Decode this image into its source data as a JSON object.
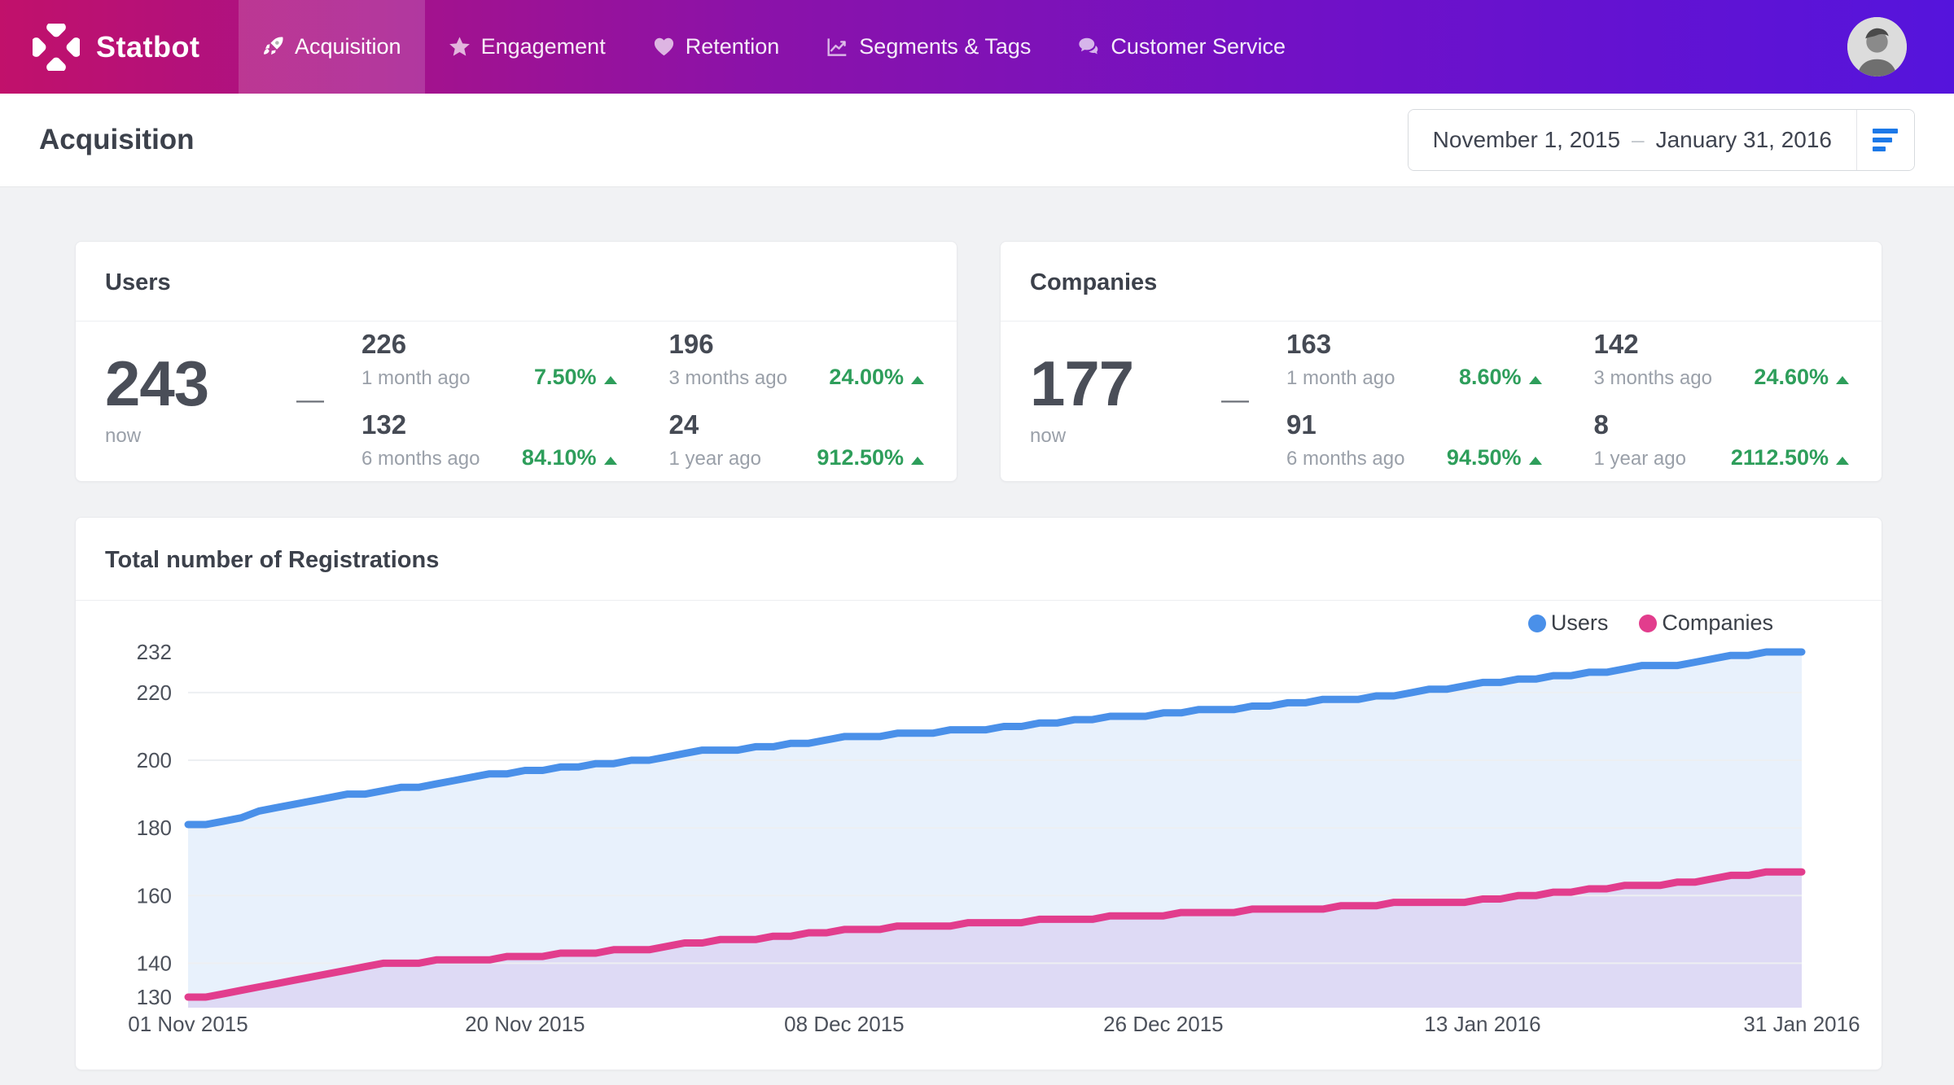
{
  "brand": {
    "name": "Statbot"
  },
  "nav": {
    "items": [
      {
        "label": "Acquisition",
        "icon": "rocket-icon",
        "active": true
      },
      {
        "label": "Engagement",
        "icon": "star-icon",
        "active": false
      },
      {
        "label": "Retention",
        "icon": "heart-icon",
        "active": false
      },
      {
        "label": "Segments & Tags",
        "icon": "chart-line-icon",
        "active": false
      },
      {
        "label": "Customer Service",
        "icon": "comments-icon",
        "active": false
      }
    ]
  },
  "header": {
    "title": "Acquisition"
  },
  "date_picker": {
    "start": "November 1, 2015",
    "separator": "–",
    "end": "January 31, 2016",
    "icon": "filter-icon"
  },
  "cards": [
    {
      "title": "Users",
      "current": {
        "value": "243",
        "label": "now"
      },
      "separator": "—",
      "stats": [
        {
          "value": "226",
          "label": "1 month ago",
          "change": "7.50%",
          "direction": "up"
        },
        {
          "value": "196",
          "label": "3 months ago",
          "change": "24.00%",
          "direction": "up"
        },
        {
          "value": "132",
          "label": "6 months ago",
          "change": "84.10%",
          "direction": "up"
        },
        {
          "value": "24",
          "label": "1 year ago",
          "change": "912.50%",
          "direction": "up"
        }
      ]
    },
    {
      "title": "Companies",
      "current": {
        "value": "177",
        "label": "now"
      },
      "separator": "—",
      "stats": [
        {
          "value": "163",
          "label": "1 month ago",
          "change": "8.60%",
          "direction": "up"
        },
        {
          "value": "142",
          "label": "3 months ago",
          "change": "24.60%",
          "direction": "up"
        },
        {
          "value": "91",
          "label": "6 months ago",
          "change": "94.50%",
          "direction": "up"
        },
        {
          "value": "8",
          "label": "1 year ago",
          "change": "2112.50%",
          "direction": "up"
        }
      ]
    }
  ],
  "chart_card": {
    "title": "Total number of Registrations"
  },
  "chart_data": {
    "type": "area",
    "title": "Total number of Registrations",
    "x_start": "01 Nov 2015",
    "x_end": "31 Jan 2016",
    "x_tick_labels": [
      "01 Nov 2015",
      "20 Nov 2015",
      "08 Dec 2015",
      "26 Dec 2015",
      "13 Jan 2016",
      "31 Jan 2016"
    ],
    "x_tick_days": [
      0,
      19,
      37,
      55,
      73,
      91
    ],
    "y_ticks": [
      232,
      220,
      200,
      180,
      160,
      140,
      130
    ],
    "grid_ticks": [
      220,
      200,
      180,
      160,
      140
    ],
    "ylim": [
      130,
      232
    ],
    "grid": true,
    "legend_position": "top-right",
    "series": [
      {
        "name": "Users",
        "color": "#4a90e9",
        "fill": "rgba(74,144,233,0.13)",
        "values": [
          181,
          181,
          182,
          183,
          185,
          186,
          187,
          188,
          189,
          190,
          190,
          191,
          192,
          192,
          193,
          194,
          195,
          196,
          196,
          197,
          197,
          198,
          198,
          199,
          199,
          200,
          200,
          201,
          202,
          203,
          203,
          203,
          204,
          204,
          205,
          205,
          206,
          207,
          207,
          207,
          208,
          208,
          208,
          209,
          209,
          209,
          210,
          210,
          211,
          211,
          212,
          212,
          213,
          213,
          213,
          214,
          214,
          215,
          215,
          215,
          216,
          216,
          217,
          217,
          218,
          218,
          218,
          219,
          219,
          220,
          221,
          221,
          222,
          223,
          223,
          224,
          224,
          225,
          225,
          226,
          226,
          227,
          228,
          228,
          228,
          229,
          230,
          231,
          231,
          232,
          232,
          232
        ]
      },
      {
        "name": "Companies",
        "color": "#e23d8d",
        "fill": "rgba(158,72,199,0.13)",
        "values": [
          130,
          130,
          131,
          132,
          133,
          134,
          135,
          136,
          137,
          138,
          139,
          140,
          140,
          140,
          141,
          141,
          141,
          141,
          142,
          142,
          142,
          143,
          143,
          143,
          144,
          144,
          144,
          145,
          146,
          146,
          147,
          147,
          147,
          148,
          148,
          149,
          149,
          150,
          150,
          150,
          151,
          151,
          151,
          151,
          152,
          152,
          152,
          152,
          153,
          153,
          153,
          153,
          154,
          154,
          154,
          154,
          155,
          155,
          155,
          155,
          156,
          156,
          156,
          156,
          156,
          157,
          157,
          157,
          158,
          158,
          158,
          158,
          158,
          159,
          159,
          160,
          160,
          161,
          161,
          162,
          162,
          163,
          163,
          163,
          164,
          164,
          165,
          166,
          166,
          167,
          167,
          167
        ]
      }
    ]
  },
  "colors": {
    "navbar_gradient_start": "#c1116b",
    "navbar_gradient_end": "#5514dc",
    "accent_green": "#2e9e5b",
    "filter_blue": "#1d79e8",
    "users_blue": "#4a90e9",
    "companies_pink": "#e23d8d"
  }
}
